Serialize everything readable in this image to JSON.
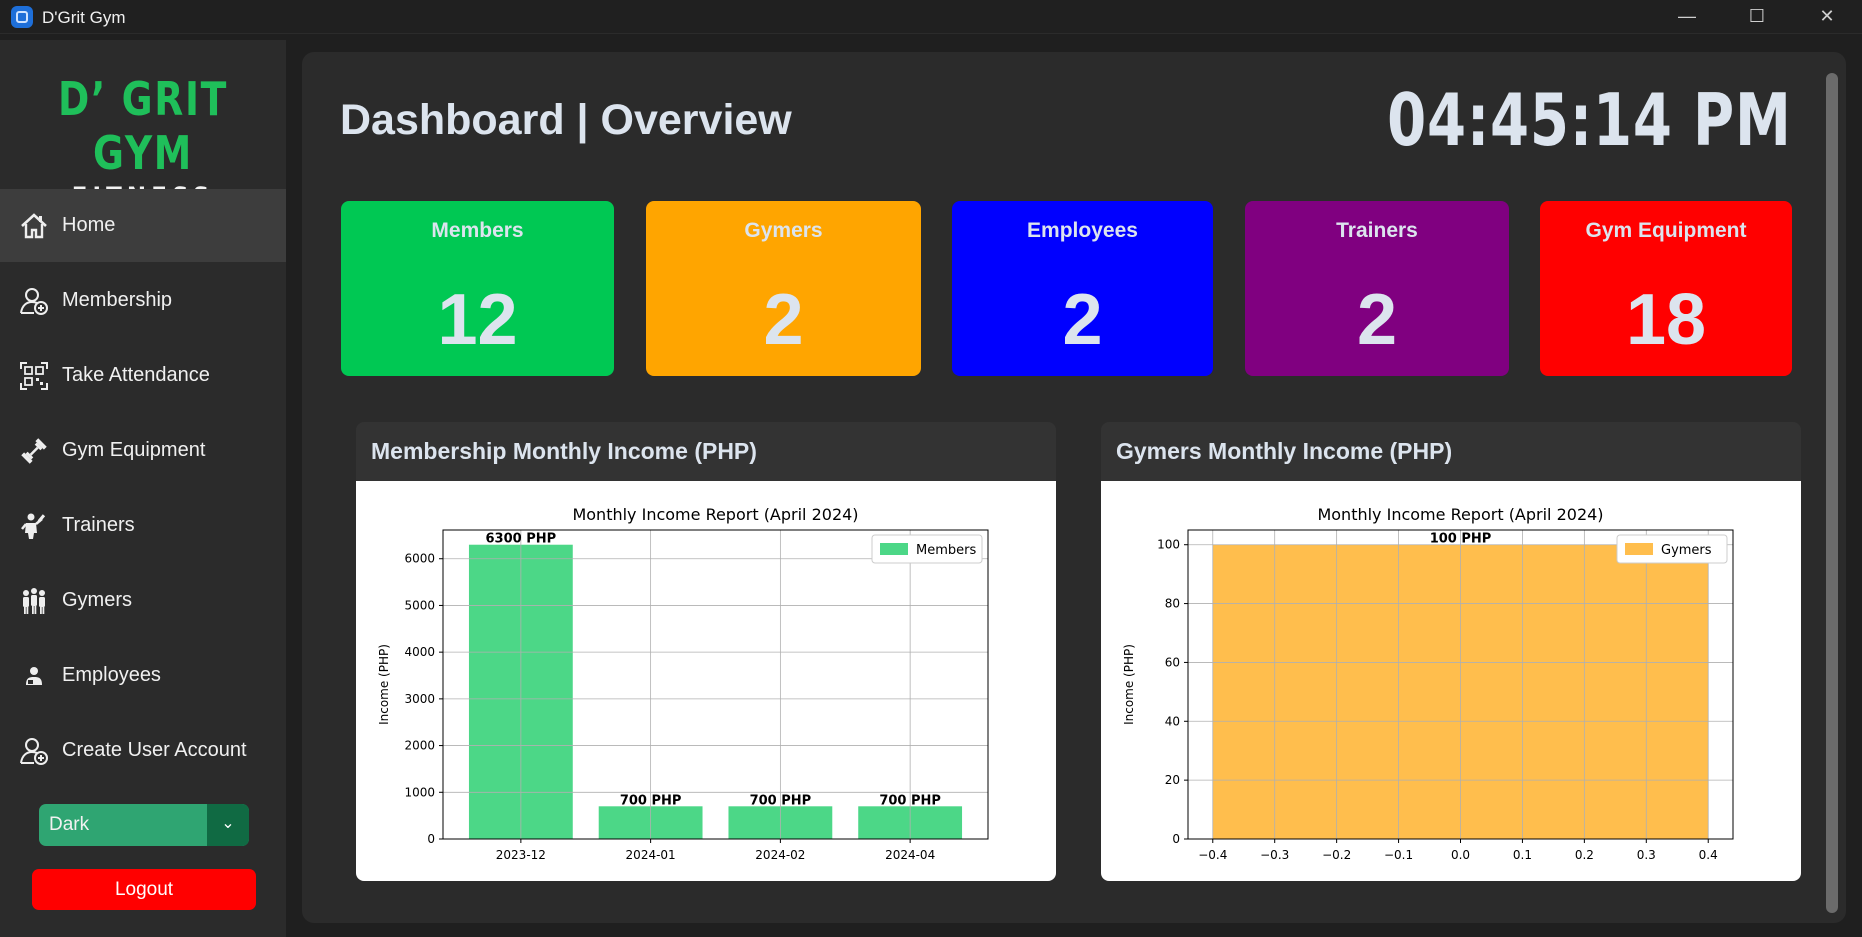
{
  "window": {
    "title": "D'Grit Gym",
    "minimize": "—",
    "maximize": "☐",
    "close": "✕"
  },
  "logo": {
    "line1": "D’ GRIT GYM",
    "line2": "FITNESS"
  },
  "sidebar": {
    "items": [
      {
        "label": "Home",
        "icon": "home-icon"
      },
      {
        "label": "Membership",
        "icon": "add-user-icon"
      },
      {
        "label": "Take Attendance",
        "icon": "qr-code-icon"
      },
      {
        "label": "Gym Equipment",
        "icon": "dumbbell-icon"
      },
      {
        "label": "Trainers",
        "icon": "trainer-icon"
      },
      {
        "label": "Gymers",
        "icon": "group-icon"
      },
      {
        "label": "Employees",
        "icon": "employee-icon"
      },
      {
        "label": "Create User Account",
        "icon": "add-user-icon"
      }
    ],
    "theme_value": "Dark",
    "logout_label": "Logout"
  },
  "header": {
    "title": "Dashboard | Overview",
    "clock": "04:45:14 PM"
  },
  "stats": [
    {
      "label": "Members",
      "value": "12",
      "color": "#00c853"
    },
    {
      "label": "Gymers",
      "value": "2",
      "color": "#ffa500"
    },
    {
      "label": "Employees",
      "value": "2",
      "color": "#0000ff"
    },
    {
      "label": "Trainers",
      "value": "2",
      "color": "#800080"
    },
    {
      "label": "Gym Equipment",
      "value": "18",
      "color": "#ff0000"
    }
  ],
  "chart_data": [
    {
      "card_title": "Membership Monthly Income (PHP)",
      "type": "bar",
      "title": "Monthly Income Report (April 2024)",
      "xlabel": "",
      "ylabel": "Income (PHP)",
      "categories": [
        "2023-12",
        "2024-01",
        "2024-02",
        "2024-04"
      ],
      "series": [
        {
          "name": "Members",
          "values": [
            6300,
            700,
            700,
            700
          ],
          "color": "#4cd787"
        }
      ],
      "data_labels": [
        "6300 PHP",
        "700 PHP",
        "700 PHP",
        "700 PHP"
      ],
      "ylim": [
        0,
        6615
      ],
      "yticks": [
        0,
        1000,
        2000,
        3000,
        4000,
        5000,
        6000
      ],
      "grid": true,
      "legend": "top-right"
    },
    {
      "card_title": "Gymers Monthly Income (PHP)",
      "type": "bar",
      "title": "Monthly Income Report (April 2024)",
      "xlabel": "",
      "ylabel": "Income (PHP)",
      "x": [
        0
      ],
      "bar_width": 0.8,
      "series": [
        {
          "name": "Gymers",
          "values": [
            100
          ],
          "color": "#ffbe4d"
        }
      ],
      "data_labels": [
        "100 PHP"
      ],
      "xlim": [
        -0.44,
        0.44
      ],
      "ylim": [
        0,
        105
      ],
      "xticks": [
        "−0.4",
        "−0.3",
        "−0.2",
        "−0.1",
        "0.0",
        "0.1",
        "0.2",
        "0.3",
        "0.4"
      ],
      "yticks": [
        0,
        20,
        40,
        60,
        80,
        100
      ],
      "grid": true,
      "legend": "top-right"
    }
  ]
}
